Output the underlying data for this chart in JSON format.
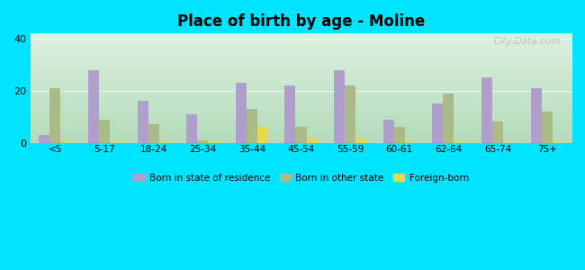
{
  "title": "Place of birth by age - Moline",
  "categories": [
    "<5",
    "5-17",
    "18-24",
    "25-34",
    "35-44",
    "45-54",
    "55-59",
    "60-61",
    "62-64",
    "65-74",
    "75+"
  ],
  "born_in_state": [
    3,
    28,
    16,
    11,
    23,
    22,
    28,
    9,
    15,
    25,
    21
  ],
  "born_other_state": [
    21,
    9,
    7,
    1,
    13,
    6,
    22,
    6,
    19,
    8,
    12
  ],
  "foreign_born": [
    0.3,
    0.3,
    0.3,
    0.3,
    6,
    1.5,
    1.5,
    0.3,
    0.3,
    0.3,
    0.3
  ],
  "bar_color_state": "#b09fcc",
  "bar_color_other": "#aabb88",
  "bar_color_foreign": "#e8d84a",
  "background_outer": "#00e5ff",
  "ylim": [
    0,
    42
  ],
  "yticks": [
    0,
    20,
    40
  ],
  "legend_labels": [
    "Born in state of residence",
    "Born in other state",
    "Foreign-born"
  ],
  "watermark": "City-Data.com"
}
